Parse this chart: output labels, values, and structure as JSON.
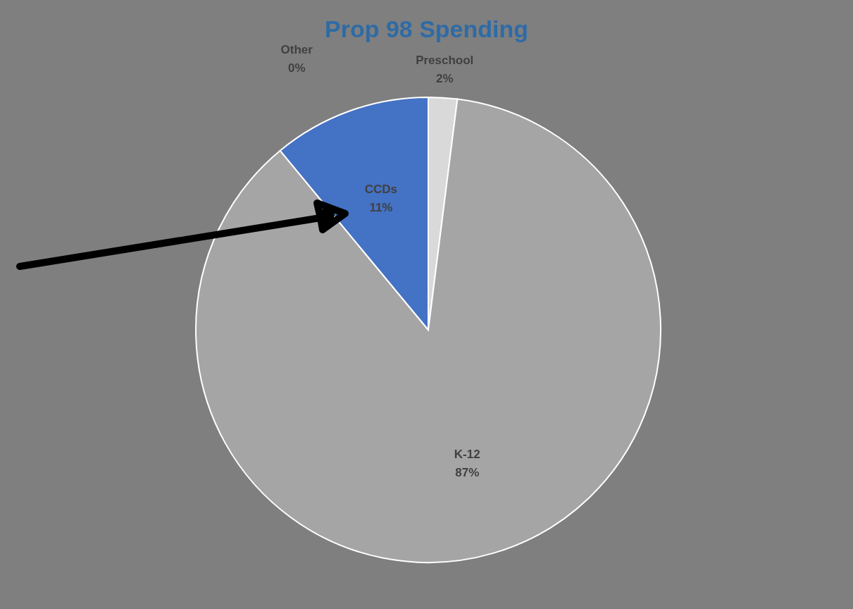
{
  "chart_data": {
    "type": "pie",
    "title": "Prop 98 Spending",
    "categories": [
      "Preschool",
      "K-12",
      "CCDs",
      "Other"
    ],
    "values": [
      2,
      87,
      11,
      0
    ],
    "colors": [
      "#d9d9d9",
      "#a5a5a5",
      "#4472c4",
      "#ffffff"
    ],
    "value_labels": [
      "2%",
      "87%",
      "11%",
      "0%"
    ],
    "legend": false
  }
}
